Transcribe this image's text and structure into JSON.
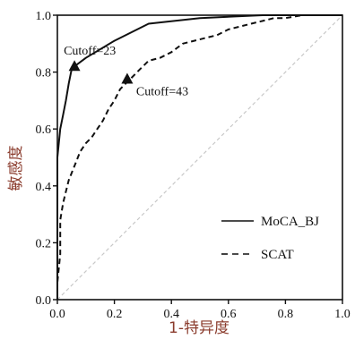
{
  "chart_data": {
    "type": "line",
    "title": "",
    "xlabel": "1-特异度",
    "ylabel": "敏感度",
    "xlim": [
      0,
      1
    ],
    "ylim": [
      0,
      1
    ],
    "xticks": [
      "0.0",
      "0.2",
      "0.4",
      "0.6",
      "0.8",
      "1.0"
    ],
    "yticks": [
      "0.0",
      "0.2",
      "0.4",
      "0.6",
      "0.8",
      "1.0"
    ],
    "legend_position": "bottom-right",
    "reference_line": {
      "x": [
        0,
        1
      ],
      "y": [
        0,
        1
      ],
      "color": "#c8c8c8",
      "style": "dashed"
    },
    "series": [
      {
        "name": "MoCA_BJ",
        "style": "solid",
        "color": "#111111",
        "x": [
          0.0,
          0.0,
          0.01,
          0.02,
          0.03,
          0.04,
          0.05,
          0.06,
          0.1,
          0.2,
          0.32,
          0.5,
          0.72,
          1.0
        ],
        "y": [
          0.0,
          0.5,
          0.6,
          0.65,
          0.7,
          0.76,
          0.81,
          0.82,
          0.85,
          0.91,
          0.97,
          0.99,
          1.0,
          1.0
        ]
      },
      {
        "name": "SCAT",
        "style": "dashed",
        "color": "#111111",
        "x": [
          0.0,
          0.0,
          0.01,
          0.01,
          0.02,
          0.03,
          0.04,
          0.06,
          0.08,
          0.1,
          0.12,
          0.14,
          0.16,
          0.18,
          0.2,
          0.22,
          0.24,
          0.26,
          0.28,
          0.3,
          0.32,
          0.36,
          0.4,
          0.44,
          0.48,
          0.52,
          0.56,
          0.6,
          0.64,
          0.68,
          0.72,
          0.76,
          0.8,
          0.86,
          0.9,
          1.0
        ],
        "y": [
          0.0,
          0.06,
          0.16,
          0.28,
          0.34,
          0.38,
          0.42,
          0.47,
          0.52,
          0.55,
          0.57,
          0.6,
          0.63,
          0.67,
          0.7,
          0.74,
          0.76,
          0.78,
          0.8,
          0.82,
          0.84,
          0.85,
          0.87,
          0.9,
          0.91,
          0.92,
          0.93,
          0.95,
          0.96,
          0.97,
          0.98,
          0.99,
          0.99,
          1.0,
          1.0,
          1.0
        ]
      }
    ],
    "annotations": [
      {
        "text": "Cutoff=23",
        "x": 0.06,
        "y": 0.82,
        "marker": "triangle"
      },
      {
        "text": "Cutoff=43",
        "x": 0.245,
        "y": 0.775,
        "marker": "triangle"
      }
    ]
  }
}
